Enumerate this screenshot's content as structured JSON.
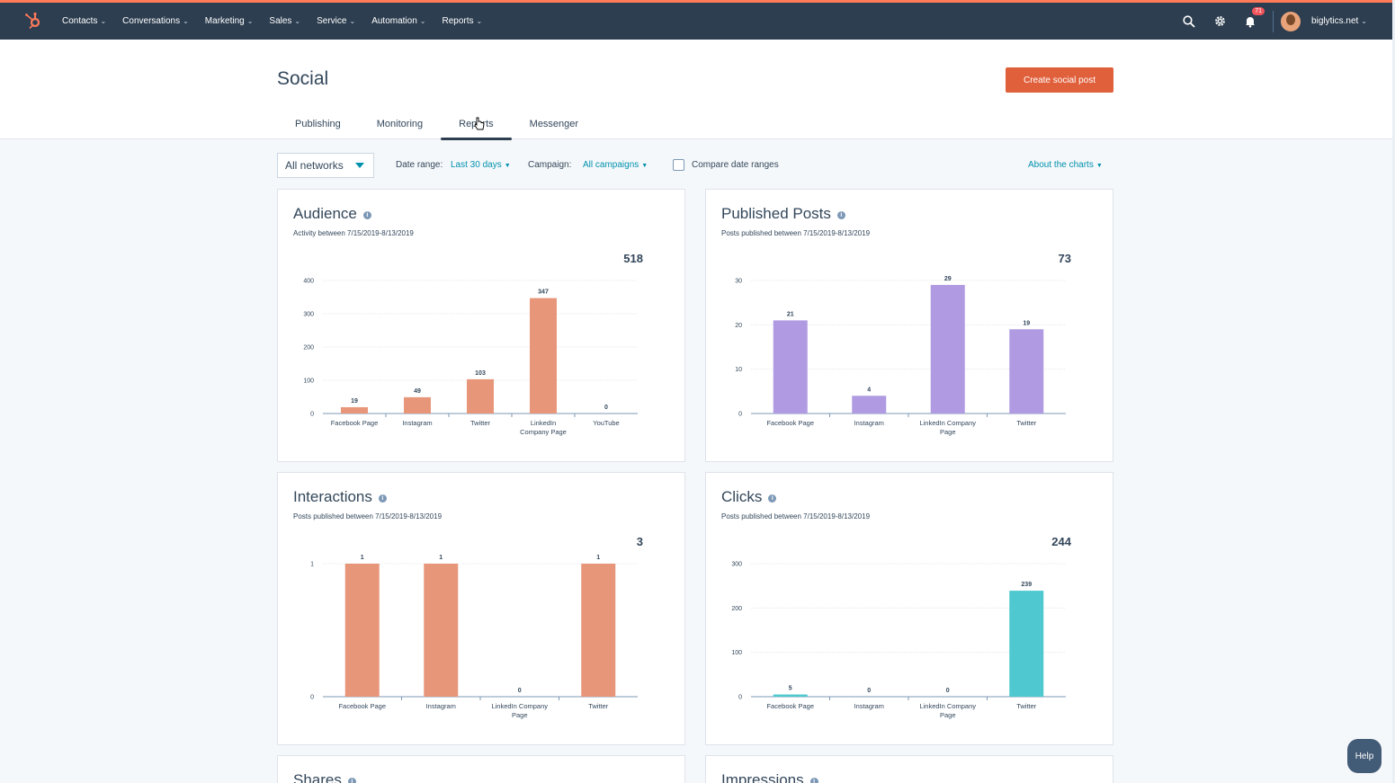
{
  "topnav": {
    "items": [
      {
        "label": "Contacts"
      },
      {
        "label": "Conversations"
      },
      {
        "label": "Marketing"
      },
      {
        "label": "Sales"
      },
      {
        "label": "Service"
      },
      {
        "label": "Automation"
      },
      {
        "label": "Reports"
      }
    ],
    "notification_count": "71",
    "account_name": "biglytics.net",
    "accent_color": "#ff7a59",
    "bg_color": "#2d3e50"
  },
  "header": {
    "title": "Social",
    "create_button": "Create social post",
    "tabs": [
      {
        "label": "Publishing",
        "active": false
      },
      {
        "label": "Monitoring",
        "active": false
      },
      {
        "label": "Reports",
        "active": true
      },
      {
        "label": "Messenger",
        "active": false
      }
    ]
  },
  "filters": {
    "network": "All networks",
    "date_range_label": "Date range:",
    "date_range_value": "Last 30 days",
    "campaign_label": "Campaign:",
    "campaign_value": "All campaigns",
    "compare_label": "Compare date ranges",
    "compare_checked": false,
    "about_link": "About the charts"
  },
  "cards": [
    {
      "title": "Audience",
      "subtitle": "Activity between 7/15/2019-8/13/2019",
      "total": "518"
    },
    {
      "title": "Published Posts",
      "subtitle": "Posts published between 7/15/2019-8/13/2019",
      "total": "73"
    },
    {
      "title": "Interactions",
      "subtitle": "Posts published between 7/15/2019-8/13/2019",
      "total": "3"
    },
    {
      "title": "Clicks",
      "subtitle": "Posts published between 7/15/2019-8/13/2019",
      "total": "244"
    },
    {
      "title": "Shares"
    },
    {
      "title": "Impressions"
    }
  ],
  "chart_data": [
    {
      "type": "bar",
      "title": "Audience",
      "categories": [
        [
          "Facebook Page"
        ],
        [
          "Instagram"
        ],
        [
          "Twitter"
        ],
        [
          "LinkedIn",
          "Company Page"
        ],
        [
          "YouTube"
        ]
      ],
      "values": [
        19,
        49,
        103,
        347,
        0
      ],
      "yticks": [
        0,
        100,
        200,
        300,
        400
      ],
      "ylim": [
        0,
        400
      ],
      "color": "#e8967a"
    },
    {
      "type": "bar",
      "title": "Published Posts",
      "categories": [
        [
          "Facebook Page"
        ],
        [
          "Instagram"
        ],
        [
          "LinkedIn Company",
          "Page"
        ],
        [
          "Twitter"
        ]
      ],
      "values": [
        21,
        4,
        29,
        19
      ],
      "yticks": [
        0,
        10,
        20,
        30
      ],
      "ylim": [
        0,
        30
      ],
      "color": "#b09be2"
    },
    {
      "type": "bar",
      "title": "Interactions",
      "categories": [
        [
          "Facebook Page"
        ],
        [
          "Instagram"
        ],
        [
          "LinkedIn Company",
          "Page"
        ],
        [
          "Twitter"
        ]
      ],
      "values": [
        1,
        1,
        0,
        1
      ],
      "yticks": [
        0,
        1
      ],
      "ylim": [
        0,
        1
      ],
      "color": "#e8967a"
    },
    {
      "type": "bar",
      "title": "Clicks",
      "categories": [
        [
          "Facebook Page"
        ],
        [
          "Instagram"
        ],
        [
          "LinkedIn Company",
          "Page"
        ],
        [
          "Twitter"
        ]
      ],
      "values": [
        5,
        0,
        0,
        239
      ],
      "yticks": [
        0,
        100,
        200,
        300
      ],
      "ylim": [
        0,
        300
      ],
      "color": "#4fc9cf"
    }
  ],
  "help_label": "Help"
}
